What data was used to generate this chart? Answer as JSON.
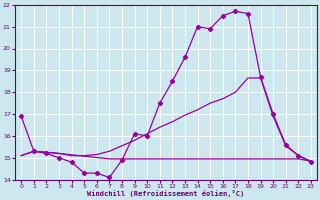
{
  "xlabel": "Windchill (Refroidissement éolien,°C)",
  "bg_color": "#cce8ee",
  "line_color": "#990099",
  "grid_color": "#ffffff",
  "xlim": [
    -0.5,
    23.5
  ],
  "ylim": [
    14,
    22
  ],
  "xticks": [
    0,
    1,
    2,
    3,
    4,
    5,
    6,
    7,
    8,
    9,
    10,
    11,
    12,
    13,
    14,
    15,
    16,
    17,
    18,
    19,
    20,
    21,
    22,
    23
  ],
  "yticks": [
    14,
    15,
    16,
    17,
    18,
    19,
    20,
    21,
    22
  ],
  "line1_x": [
    0,
    1,
    2,
    3,
    4,
    5,
    6,
    7,
    8,
    9,
    10,
    11,
    12,
    13,
    14,
    15,
    16,
    17,
    18,
    19,
    20,
    21,
    22,
    23
  ],
  "line1_y": [
    16.9,
    15.3,
    15.2,
    15.0,
    14.8,
    14.3,
    14.3,
    14.1,
    14.9,
    16.1,
    16.0,
    17.5,
    18.5,
    19.6,
    21.0,
    20.9,
    21.5,
    21.7,
    21.6,
    18.7,
    17.0,
    15.6,
    15.1,
    14.8
  ],
  "line2_x": [
    0,
    1,
    2,
    3,
    4,
    5,
    6,
    7,
    8,
    9,
    10,
    11,
    12,
    13,
    14,
    15,
    16,
    17,
    18,
    19,
    20,
    21,
    22,
    23
  ],
  "line2_y": [
    15.1,
    15.3,
    15.25,
    15.2,
    15.1,
    15.1,
    15.15,
    15.3,
    15.55,
    15.8,
    16.1,
    16.4,
    16.65,
    16.95,
    17.2,
    17.5,
    17.7,
    18.0,
    18.65,
    18.65,
    16.9,
    15.55,
    15.1,
    14.85
  ],
  "line3_x": [
    0,
    1,
    2,
    3,
    7,
    18,
    19,
    20,
    21,
    22,
    23
  ],
  "line3_y": [
    15.1,
    15.3,
    15.25,
    15.2,
    14.95,
    14.95,
    14.95,
    14.95,
    14.95,
    14.95,
    14.85
  ]
}
